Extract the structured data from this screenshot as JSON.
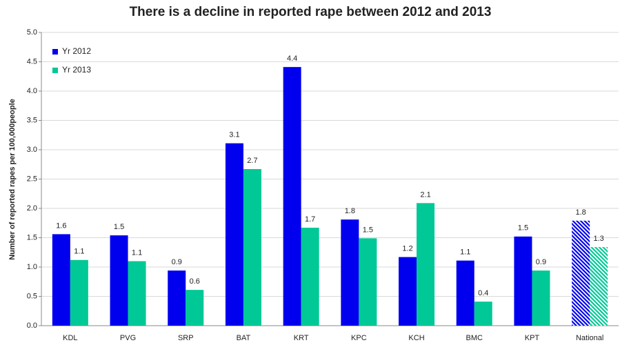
{
  "chart_data": {
    "type": "bar",
    "title": "There is a decline in reported rape between 2012 and 2013",
    "y_label": "Number of reported rapes per 100,000people",
    "categories": [
      "KDL",
      "PVG",
      "SRP",
      "BAT",
      "KRT",
      "KPC",
      "KCH",
      "BMC",
      "KPT",
      "National"
    ],
    "series": [
      {
        "name": "Yr 2012",
        "color": "#0000ee",
        "values": [
          1.56,
          1.54,
          0.94,
          3.11,
          4.41,
          1.81,
          1.17,
          1.11,
          1.52,
          1.79
        ],
        "value_labels": [
          "1.6",
          "1.5",
          "0.9",
          "3.1",
          "4.4",
          "1.8",
          "1.2",
          "1.1",
          "1.5",
          "1.8"
        ]
      },
      {
        "name": "Yr 2013",
        "color": "#00c896",
        "values": [
          1.12,
          1.1,
          0.61,
          2.67,
          1.67,
          1.49,
          2.09,
          0.41,
          0.94,
          1.34
        ],
        "value_labels": [
          "1.1",
          "1.1",
          "0.6",
          "2.7",
          "1.7",
          "1.5",
          "2.1",
          "0.4",
          "0.9",
          "1.3"
        ]
      }
    ],
    "hatched": [
      false,
      false,
      false,
      false,
      false,
      false,
      false,
      false,
      false,
      true
    ],
    "ylim": [
      0,
      5
    ],
    "yticks": [
      {
        "value": 0,
        "label": "0.0"
      },
      {
        "value": 0.5,
        "label": "0.5"
      },
      {
        "value": 1,
        "label": "1.0"
      },
      {
        "value": 1.5,
        "label": "1.5"
      },
      {
        "value": 2,
        "label": "2.0"
      },
      {
        "value": 2.5,
        "label": "2.5"
      },
      {
        "value": 3,
        "label": "3.0"
      },
      {
        "value": 3.5,
        "label": "3.5"
      },
      {
        "value": 4,
        "label": "4.0"
      },
      {
        "value": 4.5,
        "label": "4.5"
      },
      {
        "value": 5,
        "label": "5.0"
      }
    ],
    "grid": true,
    "legend": "top-left"
  }
}
